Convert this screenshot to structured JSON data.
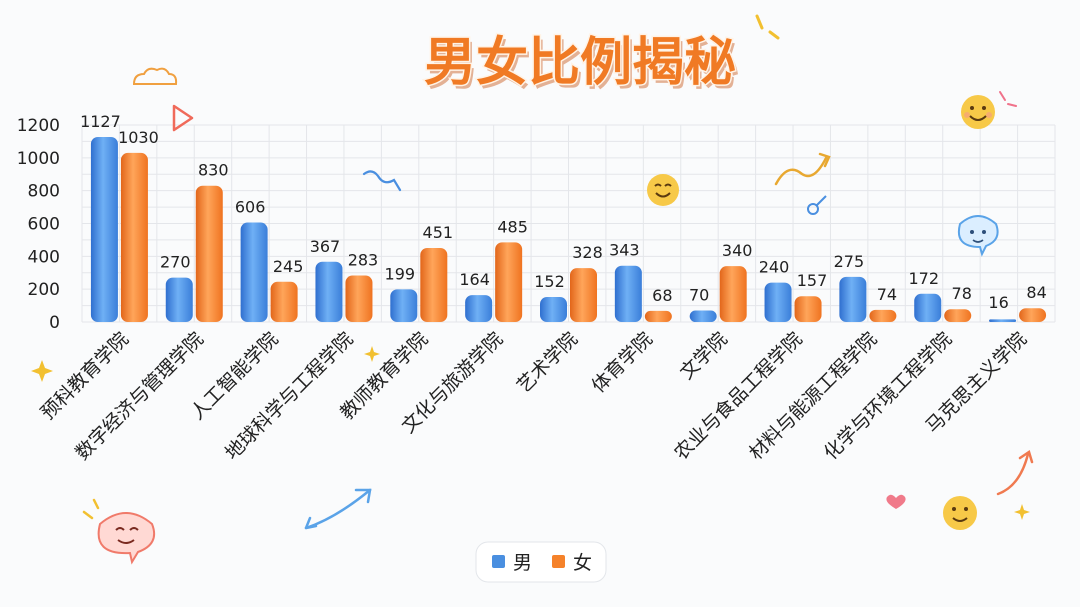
{
  "chart_data": {
    "type": "bar",
    "title": "男女比例揭秘",
    "categories": [
      "预科教育学院",
      "数字经济与管理学院",
      "人工智能学院",
      "地球科学与工程学院",
      "教师教育学院",
      "文化与旅游学院",
      "艺术学院",
      "体育学院",
      "文学院",
      "农业与食品工程学院",
      "材料与能源工程学院",
      "化学与环境工程学院",
      "马克思主义学院"
    ],
    "series": [
      {
        "name": "男",
        "color": "#4a8fe0",
        "values": [
          1127,
          270,
          606,
          367,
          199,
          164,
          152,
          343,
          70,
          240,
          275,
          172,
          16
        ]
      },
      {
        "name": "女",
        "color": "#f5822a",
        "values": [
          1030,
          830,
          245,
          283,
          451,
          485,
          328,
          68,
          340,
          157,
          74,
          78,
          84
        ]
      }
    ],
    "ylim": [
      0,
      1200
    ],
    "yticks": [
      0,
      200,
      400,
      600,
      800,
      1000,
      1200
    ],
    "grid": true,
    "legend_position": "bottom-center"
  }
}
